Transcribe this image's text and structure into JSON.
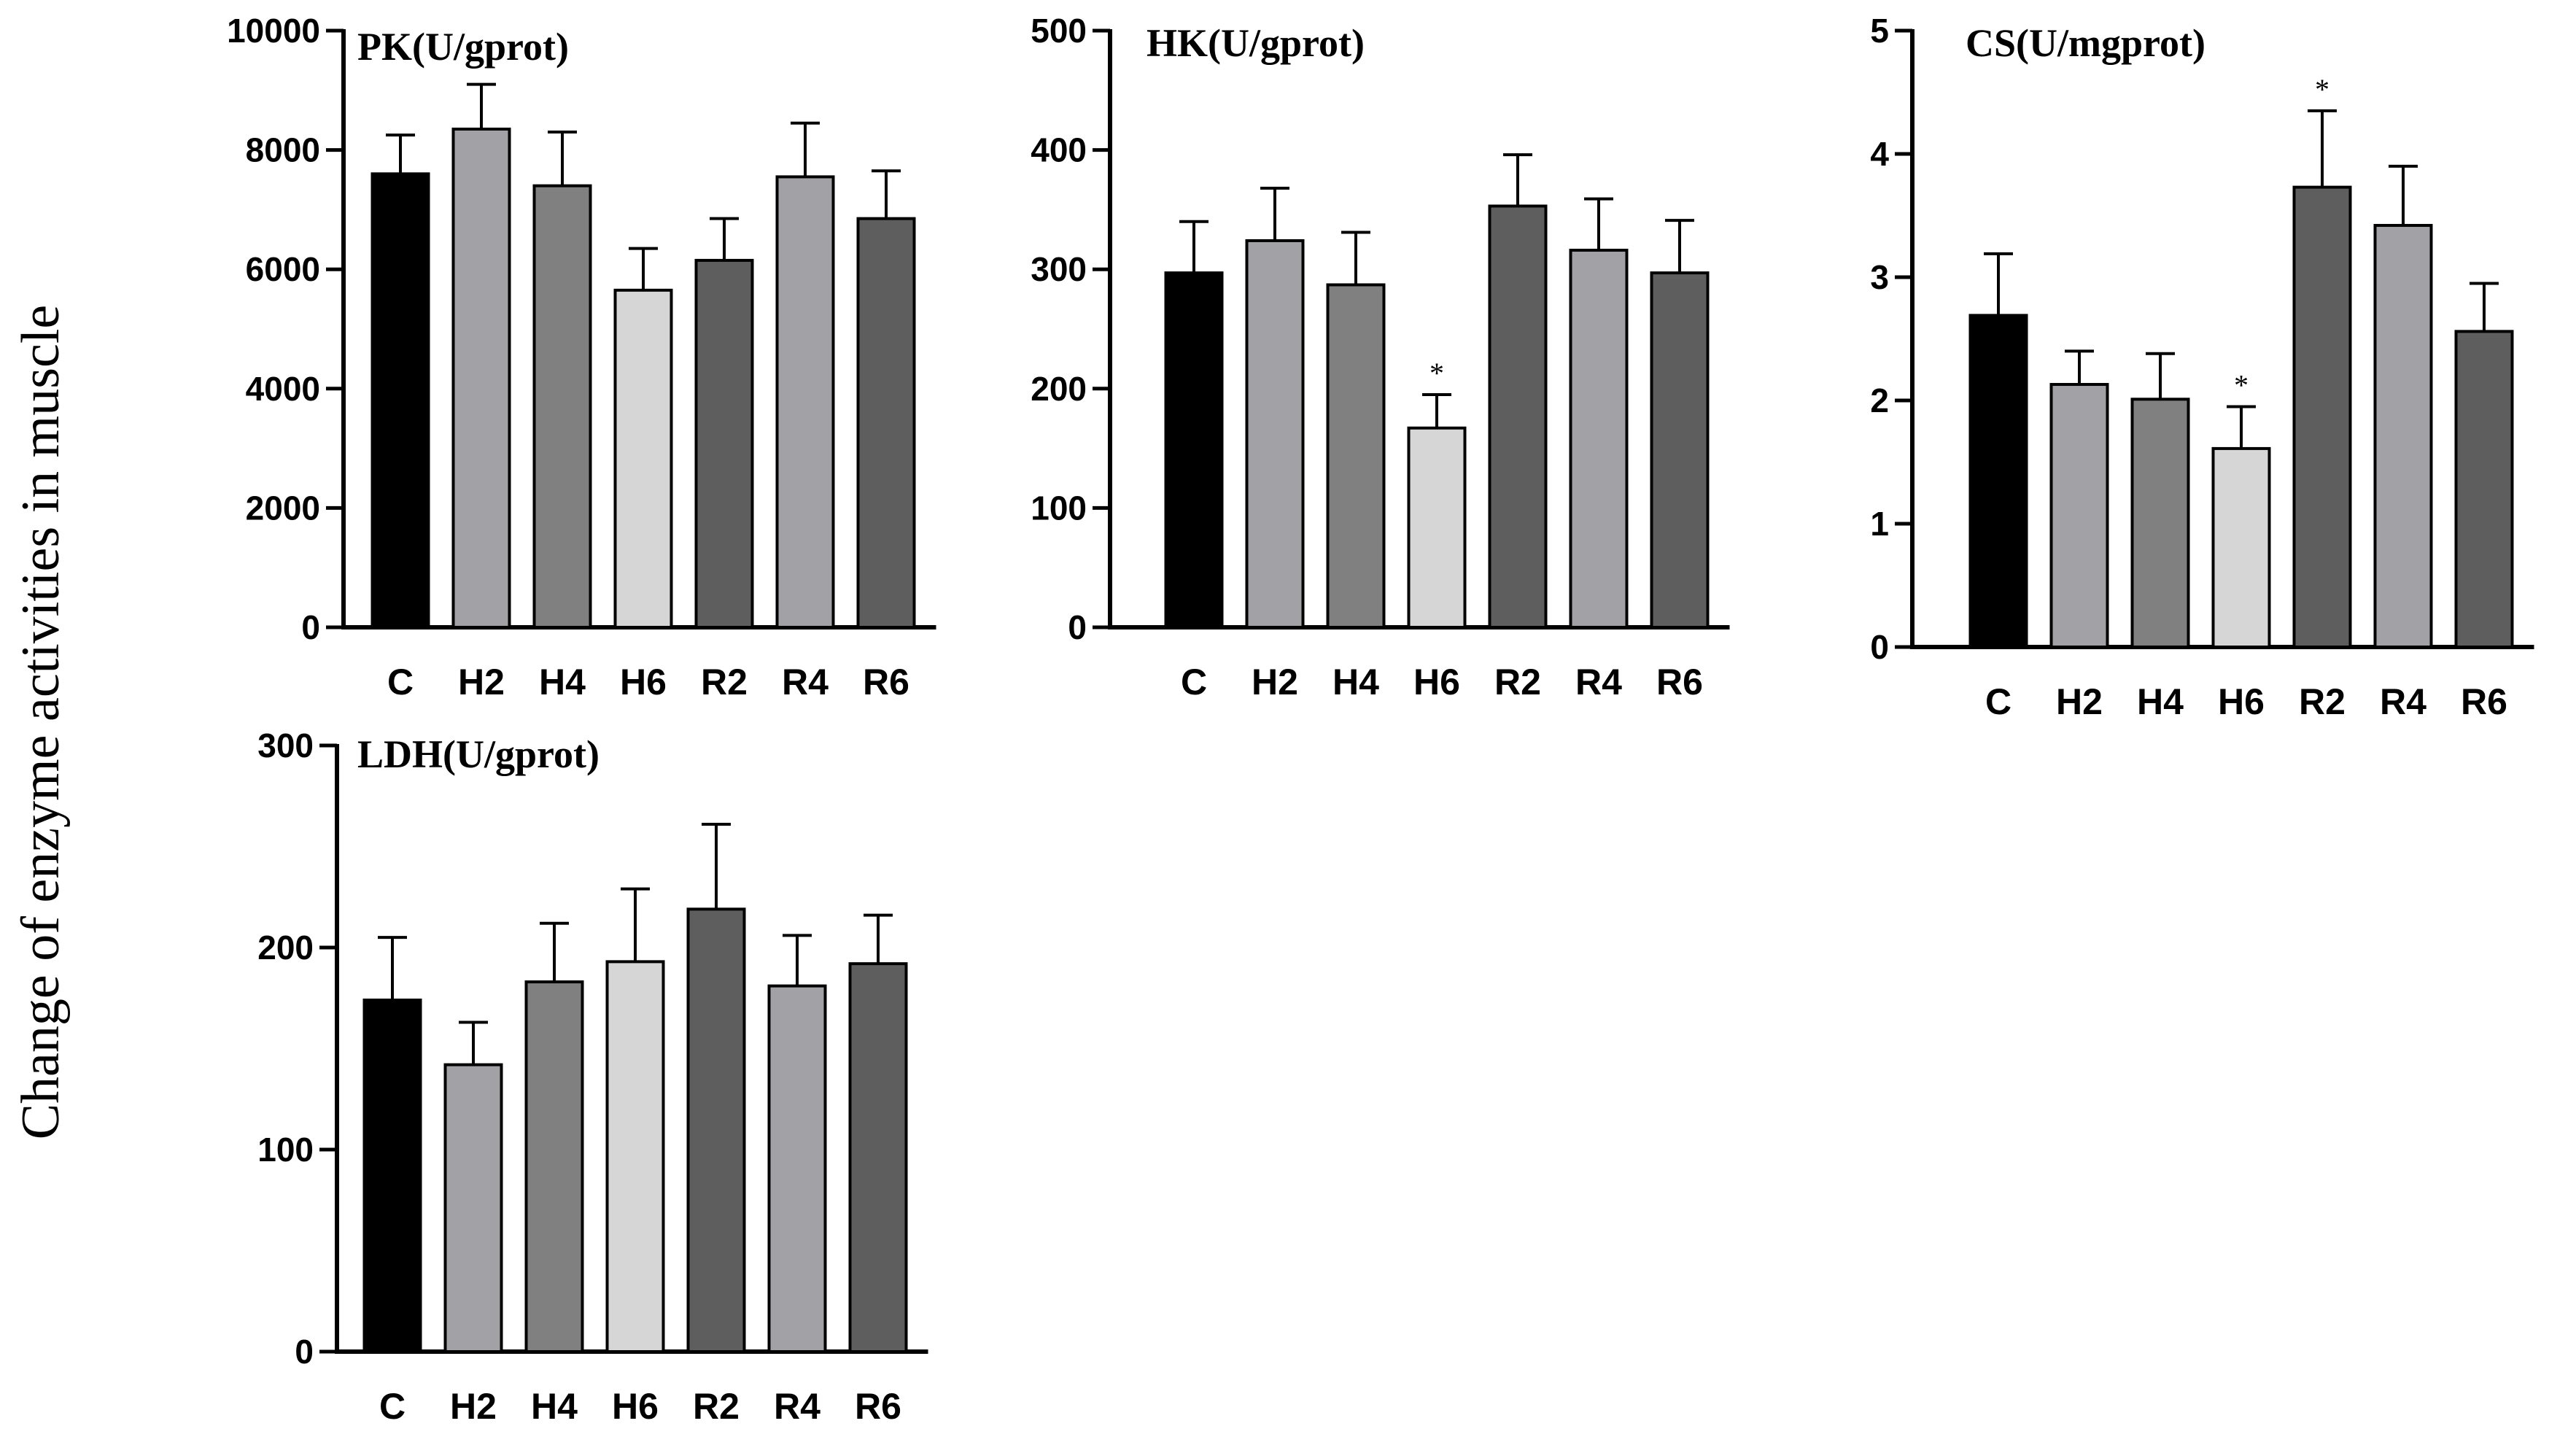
{
  "figure": {
    "ylabel": "Change of enzyme activities in muscle"
  },
  "bar_colors": {
    "C": "#000000",
    "H2": "#a2a2a6",
    "H4": "#808080",
    "H6": "#d6d6d6",
    "R2": "#5e5e5e",
    "R4": "#a2a2a6",
    "R6": "#5e5e5e"
  },
  "chart_data": [
    {
      "id": "pk",
      "type": "bar",
      "title": "PK(U/gprot)",
      "categories": [
        "C",
        "H2",
        "H4",
        "H6",
        "R2",
        "R4",
        "R6"
      ],
      "values": [
        7600,
        8350,
        7400,
        5650,
        6150,
        7550,
        6850
      ],
      "errors": [
        650,
        750,
        900,
        700,
        700,
        900,
        800
      ],
      "significance": [
        "",
        "",
        "",
        "",
        "",
        "",
        ""
      ],
      "ylim": [
        0,
        10000
      ],
      "yticks": [
        0,
        2000,
        4000,
        6000,
        8000,
        10000
      ],
      "ytick_labels": [
        "0",
        "2000",
        "4000",
        "6000",
        "8000",
        "10000"
      ],
      "xlabel": "",
      "ylabel": ""
    },
    {
      "id": "hk",
      "type": "bar",
      "title": "HK(U/gprot)",
      "categories": [
        "C",
        "H2",
        "H4",
        "H6",
        "R2",
        "R4",
        "R6"
      ],
      "values": [
        297,
        324,
        287,
        167,
        353,
        316,
        297
      ],
      "errors": [
        43,
        44,
        44,
        28,
        43,
        43,
        44
      ],
      "significance": [
        "",
        "",
        "",
        "*",
        "",
        "",
        ""
      ],
      "ylim": [
        0,
        500
      ],
      "yticks": [
        0,
        100,
        200,
        300,
        400,
        500
      ],
      "ytick_labels": [
        "0",
        "100",
        "200",
        "300",
        "400",
        "500"
      ],
      "xlabel": "",
      "ylabel": ""
    },
    {
      "id": "cs",
      "type": "bar",
      "title": "CS(U/mgprot)",
      "categories": [
        "C",
        "H2",
        "H4",
        "H6",
        "R2",
        "R4",
        "R6"
      ],
      "values": [
        2.69,
        2.13,
        2.01,
        1.61,
        3.73,
        3.42,
        2.56
      ],
      "errors": [
        0.5,
        0.27,
        0.37,
        0.34,
        0.62,
        0.48,
        0.39
      ],
      "significance": [
        "",
        "",
        "",
        "*",
        "*",
        "",
        ""
      ],
      "ylim": [
        0,
        5
      ],
      "yticks": [
        0,
        1,
        2,
        3,
        4,
        5
      ],
      "ytick_labels": [
        "0",
        "1",
        "2",
        "3",
        "4",
        "5"
      ],
      "xlabel": "",
      "ylabel": ""
    },
    {
      "id": "ldh",
      "type": "bar",
      "title": "LDH(U/gprot)",
      "categories": [
        "C",
        "H2",
        "H4",
        "H6",
        "R2",
        "R4",
        "R6"
      ],
      "values": [
        174,
        142,
        183,
        193,
        219,
        181,
        192
      ],
      "errors": [
        31,
        21,
        29,
        36,
        42,
        25,
        24
      ],
      "significance": [
        "",
        "",
        "",
        "",
        "",
        "",
        ""
      ],
      "ylim": [
        0,
        300
      ],
      "yticks": [
        0,
        100,
        200,
        300
      ],
      "ytick_labels": [
        "0",
        "100",
        "200",
        "300"
      ],
      "xlabel": "",
      "ylabel": ""
    }
  ]
}
